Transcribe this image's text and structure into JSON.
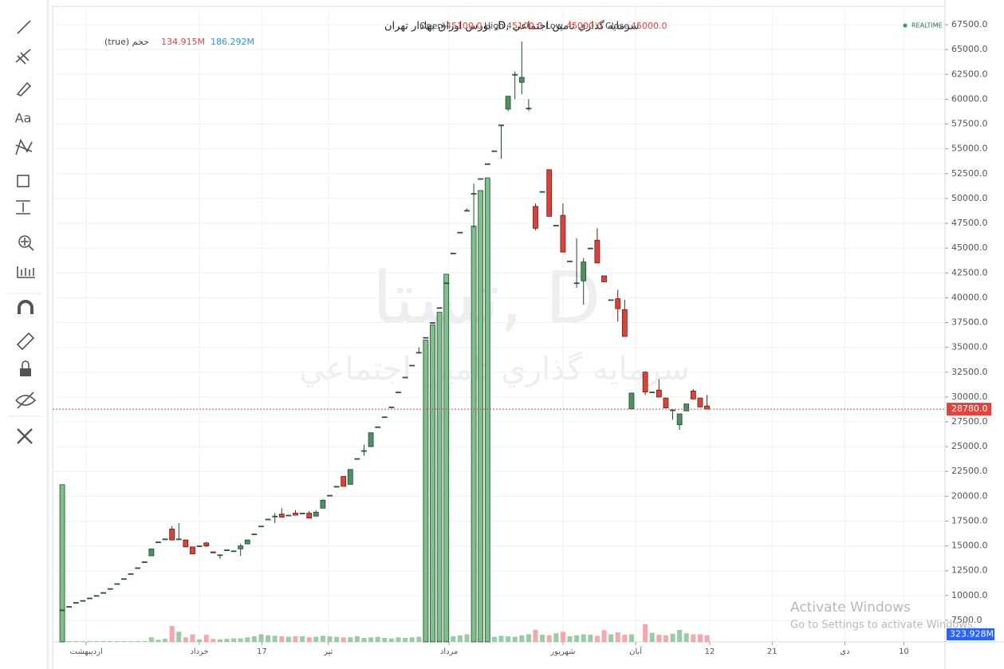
{
  "header": {
    "title": "سرمایه گذاري تامين اجتماعي ,D, بورس اوراق بهادار تهران",
    "open_label": "Open",
    "open": "45100.0",
    "high_label": "High",
    "high": "45100.0",
    "low_label": "Low",
    "low": "45000.0",
    "close_label": "Close",
    "close": "45000.0",
    "realtime": "REALTIME",
    "volume_name": "حجم (true)",
    "volume_a": "134.915M",
    "volume_b": "186.292M"
  },
  "toolbar": {
    "text_tool": "Aa"
  },
  "watermark": {
    "symbol": "تستا, D",
    "name": "سرمايه گذاري تامين اجتماعي"
  },
  "windows_notice": {
    "title": "Activate Windows",
    "subtitle": "Go to Settings to activate Windows."
  },
  "chart_data": {
    "type": "candlestick",
    "x": [
      0,
      1,
      2,
      3,
      4,
      5,
      6,
      7,
      8,
      9,
      10,
      11,
      12,
      13,
      14,
      15,
      16,
      17,
      18,
      19,
      20,
      21,
      22,
      23,
      24,
      25,
      26,
      27,
      28,
      29,
      30,
      31,
      32,
      33,
      34,
      35,
      36,
      37,
      38,
      39,
      40,
      41,
      42,
      43,
      44,
      45,
      46,
      47,
      48,
      49,
      50,
      51,
      52,
      53,
      54,
      55,
      56,
      57,
      58,
      59,
      60,
      61,
      62,
      63,
      64,
      65,
      66,
      67,
      68,
      69,
      70,
      71,
      72,
      73,
      74,
      75,
      76,
      77,
      78,
      79,
      80,
      81,
      82,
      83,
      85,
      86,
      87,
      88,
      89,
      90,
      91,
      92,
      93,
      94
    ],
    "open": [
      8550,
      8900,
      9300,
      9500,
      9750,
      10000,
      10300,
      10700,
      11200,
      11700,
      12200,
      12800,
      13400,
      14000,
      15400,
      15700,
      16700,
      15700,
      15600,
      14900,
      15000,
      15300,
      14400,
      14100,
      14600,
      14500,
      14700,
      15200,
      16200,
      17000,
      17700,
      18000,
      18200,
      18100,
      18300,
      18300,
      18300,
      18000,
      18800,
      20100,
      21000,
      22000,
      21200,
      23800,
      24600,
      25000,
      27000,
      28000,
      29000,
      30500,
      32000,
      33200,
      34500,
      36000,
      37500,
      39000,
      41500,
      44500,
      46600,
      48800,
      50500,
      52000,
      53500,
      54800,
      57400,
      59000,
      62500,
      61700,
      59100,
      49200,
      50700,
      52900,
      47300,
      48300,
      43700,
      41500,
      41700,
      45000,
      45800,
      42200,
      39800,
      39900,
      38800,
      28800,
      32500,
      30500,
      30700,
      29900,
      28700,
      27200,
      28600,
      30600,
      29900,
      29100
    ],
    "high": [
      8550,
      8900,
      9300,
      9500,
      9750,
      10000,
      10300,
      10700,
      11200,
      11700,
      12200,
      12800,
      13400,
      14700,
      15400,
      15700,
      17000,
      17300,
      15600,
      14900,
      15000,
      15400,
      14400,
      14100,
      14600,
      14500,
      15200,
      15600,
      16200,
      17000,
      17700,
      18300,
      18800,
      18100,
      18600,
      18300,
      18500,
      18600,
      19700,
      20100,
      21000,
      22000,
      22700,
      23800,
      25200,
      26400,
      27000,
      28000,
      29000,
      30500,
      32000,
      33200,
      35000,
      36000,
      37500,
      39000,
      41500,
      44500,
      46600,
      49000,
      51500,
      52000,
      53500,
      54800,
      57400,
      60300,
      62800,
      65800,
      60000,
      49500,
      50700,
      52900,
      47300,
      49500,
      43700,
      46000,
      44000,
      45000,
      47000,
      42200,
      39800,
      40800,
      39800,
      30400,
      32600,
      30500,
      31800,
      29900,
      28700,
      28300,
      29300,
      30800,
      29900,
      30200
    ],
    "low": [
      8550,
      8900,
      9300,
      9500,
      9750,
      10000,
      10300,
      10700,
      11200,
      11700,
      12200,
      12800,
      13400,
      14000,
      15400,
      15700,
      15600,
      15700,
      14900,
      14200,
      15000,
      14900,
      14300,
      13700,
      14600,
      14500,
      14000,
      15200,
      16200,
      17000,
      17700,
      17300,
      17900,
      18100,
      18100,
      18300,
      17800,
      18000,
      18800,
      20100,
      21000,
      21000,
      21200,
      23800,
      24100,
      25000,
      27000,
      28000,
      29000,
      30500,
      32000,
      33200,
      34500,
      36000,
      37500,
      39000,
      41500,
      44500,
      46600,
      48800,
      47000,
      52000,
      53500,
      54800,
      54000,
      58800,
      60000,
      60500,
      58800,
      46800,
      50700,
      48200,
      47300,
      44600,
      43700,
      41000,
      39300,
      45000,
      43500,
      41600,
      39800,
      37600,
      36100,
      28800,
      30200,
      30500,
      30000,
      28900,
      27700,
      26700,
      28600,
      29800,
      29000,
      28780
    ],
    "close": [
      8550,
      8900,
      9300,
      9500,
      9750,
      10000,
      10300,
      10700,
      11200,
      11700,
      12200,
      12800,
      13400,
      14700,
      15400,
      15700,
      15600,
      15700,
      14900,
      14200,
      15000,
      15000,
      14300,
      14100,
      14600,
      14500,
      15000,
      15600,
      16200,
      17000,
      17700,
      18000,
      17900,
      18100,
      18100,
      18300,
      17800,
      18400,
      19600,
      20100,
      21000,
      21000,
      22700,
      23800,
      24600,
      26400,
      27000,
      28000,
      29000,
      30500,
      32000,
      33200,
      34500,
      36000,
      37500,
      39000,
      41500,
      44500,
      46600,
      48800,
      50500,
      52000,
      53500,
      54800,
      57400,
      60300,
      62500,
      62200,
      59100,
      47000,
      50700,
      48200,
      47300,
      44600,
      43700,
      41500,
      43600,
      45000,
      43500,
      41600,
      39800,
      38900,
      36100,
      30400,
      30500,
      30500,
      30000,
      28900,
      28700,
      28300,
      29300,
      29800,
      29000,
      28780
    ],
    "volume": [
      620,
      3,
      3,
      3,
      3,
      3,
      3,
      3,
      3,
      3,
      3,
      3,
      3,
      18,
      8,
      12,
      63,
      40,
      18,
      30,
      10,
      28,
      12,
      10,
      12,
      14,
      14,
      18,
      22,
      30,
      26,
      24,
      22,
      20,
      22,
      22,
      18,
      20,
      24,
      22,
      20,
      18,
      18,
      22,
      16,
      18,
      20,
      16,
      14,
      18,
      16,
      18,
      20,
      1190,
      1250,
      1300,
      1450,
      22,
      26,
      30,
      1640,
      1780,
      1830,
      20,
      24,
      22,
      20,
      26,
      30,
      48,
      28,
      26,
      34,
      40,
      22,
      26,
      30,
      28,
      24,
      46,
      30,
      38,
      28,
      30,
      70,
      36,
      28,
      26,
      32,
      47,
      34,
      30,
      30,
      26
    ],
    "up_color": "#4f8f63",
    "up_border": "#224a2e",
    "down_color": "#d9443a",
    "down_border": "#6b1a14",
    "volume_up_color": "#7fbf8c",
    "volume_down_color": "#f2909a",
    "xlim": [
      -1.4,
      128.7
    ],
    "xticks": [
      {
        "value": 3.5,
        "label": "اردیبهشت"
      },
      {
        "value": 20,
        "label": "خرداد"
      },
      {
        "value": 29.1,
        "label": "17"
      },
      {
        "value": 38.8,
        "label": "تیر"
      },
      {
        "value": 56.4,
        "label": "مرداد"
      },
      {
        "value": 73,
        "label": "شهریور"
      },
      {
        "value": 83.6,
        "label": "آبان"
      },
      {
        "value": 94.4,
        "label": "12"
      },
      {
        "value": 103.5,
        "label": "21"
      },
      {
        "value": 114.1,
        "label": "دی"
      },
      {
        "value": 122.7,
        "label": "10"
      }
    ],
    "ylim": [
      5330,
      69190
    ],
    "yticks": [
      {
        "value": 7500,
        "label": "7500.0"
      },
      {
        "value": 10000,
        "label": "10000.0"
      },
      {
        "value": 12500,
        "label": "12500.0"
      },
      {
        "value": 15000,
        "label": "15000.0"
      },
      {
        "value": 17500,
        "label": "17500.0"
      },
      {
        "value": 20000,
        "label": "20000.0"
      },
      {
        "value": 22500,
        "label": "22500.0"
      },
      {
        "value": 25000,
        "label": "25000.0"
      },
      {
        "value": 27500,
        "label": "27500.0"
      },
      {
        "value": 30000,
        "label": "30000.0"
      },
      {
        "value": 32500,
        "label": "32500.0"
      },
      {
        "value": 35000,
        "label": "35000.0"
      },
      {
        "value": 37500,
        "label": "37500.0"
      },
      {
        "value": 40000,
        "label": "40000.0"
      },
      {
        "value": 42500,
        "label": "42500.0"
      },
      {
        "value": 45000,
        "label": "45000.0"
      },
      {
        "value": 47500,
        "label": "47500.0"
      },
      {
        "value": 50000,
        "label": "50000.0"
      },
      {
        "value": 52500,
        "label": "52500.0"
      },
      {
        "value": 55000,
        "label": "55000.0"
      },
      {
        "value": 57500,
        "label": "57500.0"
      },
      {
        "value": 60000,
        "label": "60000.0"
      },
      {
        "value": 62500,
        "label": "62500.0"
      },
      {
        "value": 65000,
        "label": "65000.0"
      },
      {
        "value": 67500,
        "label": "67500.0"
      }
    ],
    "vlim": [
      0,
      2500
    ],
    "last_price": {
      "value": 28780,
      "label": "28780.0",
      "color": "#e0463e"
    },
    "last_volume": {
      "label": "323.928M",
      "color": "#2862ff"
    },
    "grid": true
  }
}
